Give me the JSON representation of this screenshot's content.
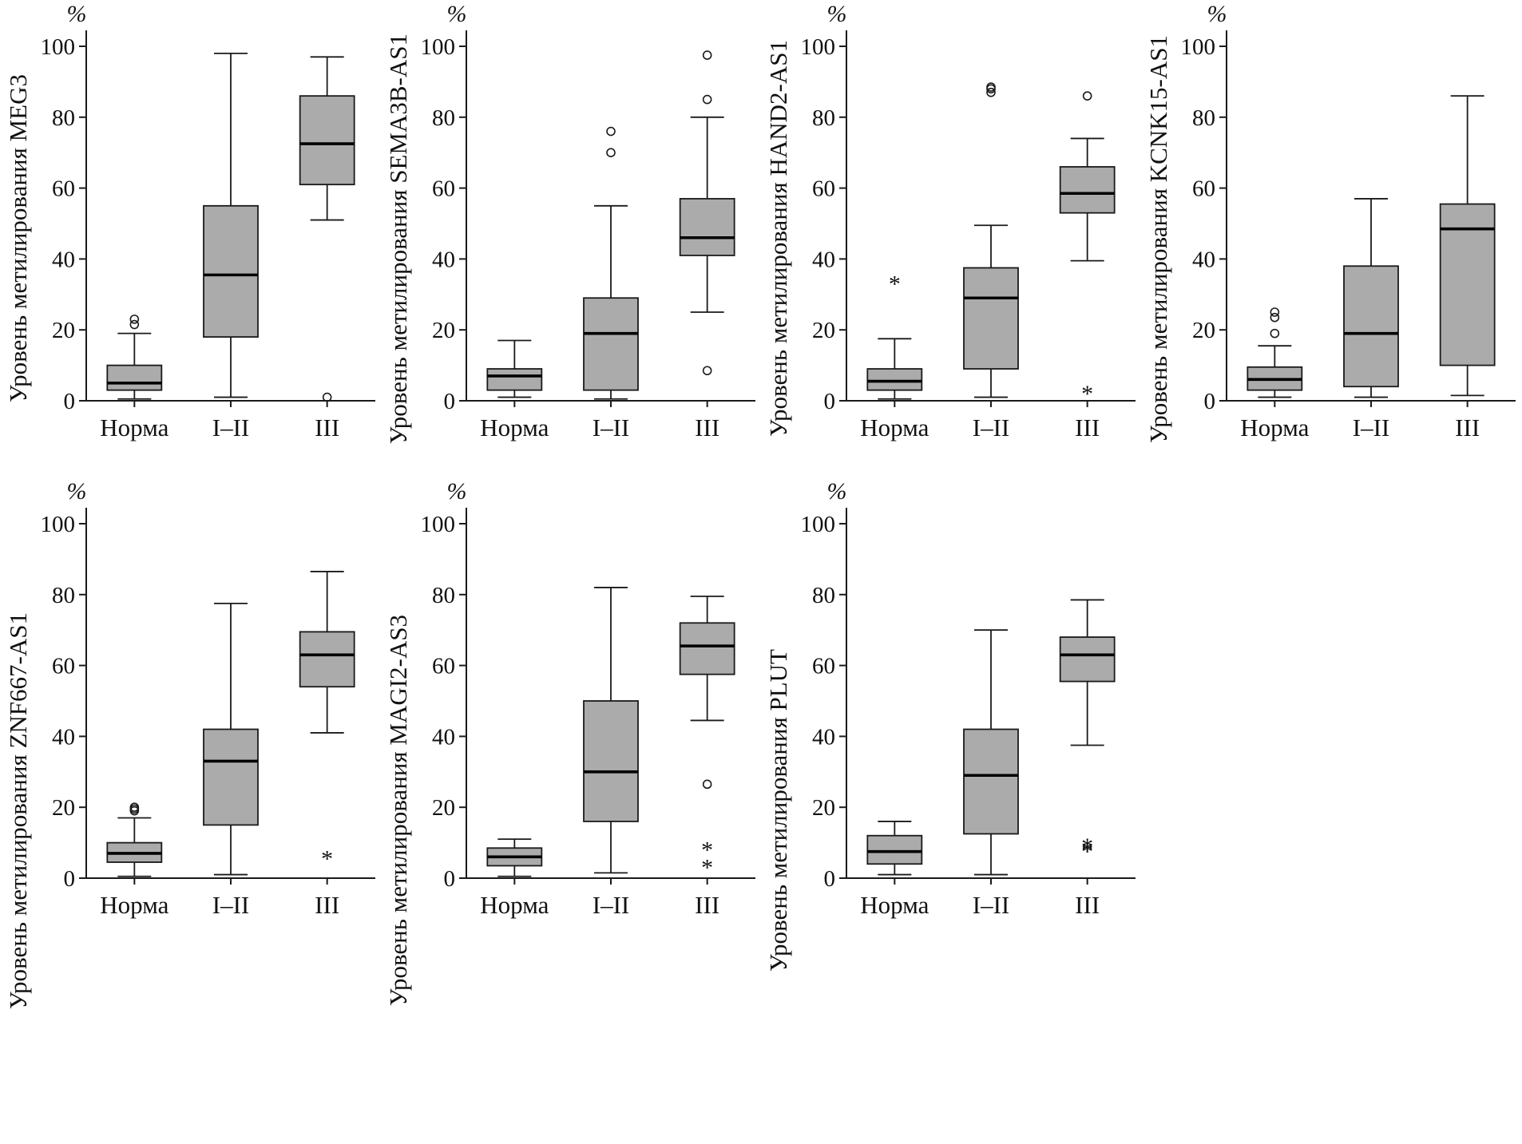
{
  "figure": {
    "unit_label": "%"
  },
  "style": {
    "box_fill": "#ababab",
    "stroke": "#1a1a1a",
    "median_color": "#000000"
  },
  "chart_data": [
    {
      "type": "boxplot",
      "gene": "MEG3",
      "ylabel": "Уровень метилирования MEG3",
      "unit": "%",
      "categories": [
        "Норма",
        "I–II",
        "III"
      ],
      "ylim": [
        0,
        100
      ],
      "yticks": [
        0,
        20,
        40,
        60,
        80,
        100
      ],
      "grid": false,
      "boxes": [
        {
          "category": "Норма",
          "whisker_low": 0.5,
          "q1": 3,
          "median": 5,
          "q3": 10,
          "whisker_high": 19,
          "outliers_circle": [
            21.5,
            23
          ],
          "outliers_star": []
        },
        {
          "category": "I–II",
          "whisker_low": 1,
          "q1": 18,
          "median": 35.5,
          "q3": 55,
          "whisker_high": 98,
          "outliers_circle": [],
          "outliers_star": []
        },
        {
          "category": "III",
          "whisker_low": 51,
          "q1": 61,
          "median": 72.5,
          "q3": 86,
          "whisker_high": 97,
          "outliers_circle": [
            1
          ],
          "outliers_star": []
        }
      ]
    },
    {
      "type": "boxplot",
      "gene": "SEMA3B-AS1",
      "ylabel": "Уровень метилирования SEMA3B-AS1",
      "unit": "%",
      "categories": [
        "Норма",
        "I–II",
        "III"
      ],
      "ylim": [
        0,
        100
      ],
      "yticks": [
        0,
        20,
        40,
        60,
        80,
        100
      ],
      "grid": false,
      "boxes": [
        {
          "category": "Норма",
          "whisker_low": 1,
          "q1": 3,
          "median": 7,
          "q3": 9,
          "whisker_high": 17,
          "outliers_circle": [],
          "outliers_star": []
        },
        {
          "category": "I–II",
          "whisker_low": 0.5,
          "q1": 3,
          "median": 19,
          "q3": 29,
          "whisker_high": 55,
          "outliers_circle": [
            70,
            76
          ],
          "outliers_star": []
        },
        {
          "category": "III",
          "whisker_low": 25,
          "q1": 41,
          "median": 46,
          "q3": 57,
          "whisker_high": 80,
          "outliers_circle": [
            8.5,
            85,
            97.5
          ],
          "outliers_star": []
        }
      ]
    },
    {
      "type": "boxplot",
      "gene": "HAND2-AS1",
      "ylabel": "Уровень метилирования HAND2-AS1",
      "unit": "%",
      "categories": [
        "Норма",
        "I–II",
        "III"
      ],
      "ylim": [
        0,
        100
      ],
      "yticks": [
        0,
        20,
        40,
        60,
        80,
        100
      ],
      "grid": false,
      "boxes": [
        {
          "category": "Норма",
          "whisker_low": 0.5,
          "q1": 3,
          "median": 5.5,
          "q3": 9,
          "whisker_high": 17.5,
          "outliers_circle": [],
          "outliers_star": [
            33
          ]
        },
        {
          "category": "I–II",
          "whisker_low": 1,
          "q1": 9,
          "median": 29,
          "q3": 37.5,
          "whisker_high": 49.5,
          "outliers_circle": [
            87,
            88,
            88.5
          ],
          "outliers_star": []
        },
        {
          "category": "III",
          "whisker_low": 39.5,
          "q1": 53,
          "median": 58.5,
          "q3": 66,
          "whisker_high": 74,
          "outliers_circle": [
            86
          ],
          "outliers_star": [
            2
          ]
        }
      ]
    },
    {
      "type": "boxplot",
      "gene": "KCNK15-AS1",
      "ylabel": "Уровень метилирования KCNK15-AS1",
      "unit": "%",
      "categories": [
        "Норма",
        "I–II",
        "III"
      ],
      "ylim": [
        0,
        100
      ],
      "yticks": [
        0,
        20,
        40,
        60,
        80,
        100
      ],
      "grid": false,
      "boxes": [
        {
          "category": "Норма",
          "whisker_low": 1,
          "q1": 3,
          "median": 6,
          "q3": 9.5,
          "whisker_high": 15.5,
          "outliers_circle": [
            19,
            23.5,
            25
          ],
          "outliers_star": []
        },
        {
          "category": "I–II",
          "whisker_low": 1,
          "q1": 4,
          "median": 19,
          "q3": 38,
          "whisker_high": 57,
          "outliers_circle": [],
          "outliers_star": []
        },
        {
          "category": "III",
          "whisker_low": 1.5,
          "q1": 10,
          "median": 48.5,
          "q3": 55.5,
          "whisker_high": 86,
          "outliers_circle": [],
          "outliers_star": []
        }
      ]
    },
    {
      "type": "boxplot",
      "gene": "ZNF667-AS1",
      "ylabel": "Уровень метилирования ZNF667-AS1",
      "unit": "%",
      "categories": [
        "Норма",
        "I–II",
        "III"
      ],
      "ylim": [
        0,
        100
      ],
      "yticks": [
        0,
        20,
        40,
        60,
        80,
        100
      ],
      "grid": false,
      "boxes": [
        {
          "category": "Норма",
          "whisker_low": 0.5,
          "q1": 4.5,
          "median": 7,
          "q3": 10,
          "whisker_high": 17,
          "outliers_circle": [
            19,
            19.5,
            20
          ],
          "outliers_star": []
        },
        {
          "category": "I–II",
          "whisker_low": 1,
          "q1": 15,
          "median": 33,
          "q3": 42,
          "whisker_high": 77.5,
          "outliers_circle": [],
          "outliers_star": []
        },
        {
          "category": "III",
          "whisker_low": 41,
          "q1": 54,
          "median": 63,
          "q3": 69.5,
          "whisker_high": 86.5,
          "outliers_circle": [],
          "outliers_star": [
            5.5
          ]
        }
      ]
    },
    {
      "type": "boxplot",
      "gene": "MAGI2-AS3",
      "ylabel": "Уровень метилирования MAGI2-AS3",
      "unit": "%",
      "categories": [
        "Норма",
        "I–II",
        "III"
      ],
      "ylim": [
        0,
        100
      ],
      "yticks": [
        0,
        20,
        40,
        60,
        80,
        100
      ],
      "grid": false,
      "boxes": [
        {
          "category": "Норма",
          "whisker_low": 0.5,
          "q1": 3.5,
          "median": 6,
          "q3": 8.5,
          "whisker_high": 11,
          "outliers_circle": [],
          "outliers_star": []
        },
        {
          "category": "I–II",
          "whisker_low": 1.5,
          "q1": 16,
          "median": 30,
          "q3": 50,
          "whisker_high": 82,
          "outliers_circle": [],
          "outliers_star": []
        },
        {
          "category": "III",
          "whisker_low": 44.5,
          "q1": 57.5,
          "median": 65.5,
          "q3": 72,
          "whisker_high": 79.5,
          "outliers_circle": [
            26.5
          ],
          "outliers_star": [
            8,
            3
          ]
        }
      ]
    },
    {
      "type": "boxplot",
      "gene": "PLUT",
      "ylabel": "Уровень метилирования PLUT",
      "unit": "%",
      "categories": [
        "Норма",
        "I–II",
        "III"
      ],
      "ylim": [
        0,
        100
      ],
      "yticks": [
        0,
        20,
        40,
        60,
        80,
        100
      ],
      "grid": false,
      "boxes": [
        {
          "category": "Норма",
          "whisker_low": 1,
          "q1": 4,
          "median": 7.5,
          "q3": 12,
          "whisker_high": 16,
          "outliers_circle": [],
          "outliers_star": []
        },
        {
          "category": "I–II",
          "whisker_low": 1,
          "q1": 12.5,
          "median": 29,
          "q3": 42,
          "whisker_high": 70,
          "outliers_circle": [],
          "outliers_star": []
        },
        {
          "category": "III",
          "whisker_low": 37.5,
          "q1": 55.5,
          "median": 63,
          "q3": 68,
          "whisker_high": 78.5,
          "outliers_circle": [],
          "outliers_star": [
            7.5,
            8,
            9
          ]
        }
      ]
    }
  ]
}
